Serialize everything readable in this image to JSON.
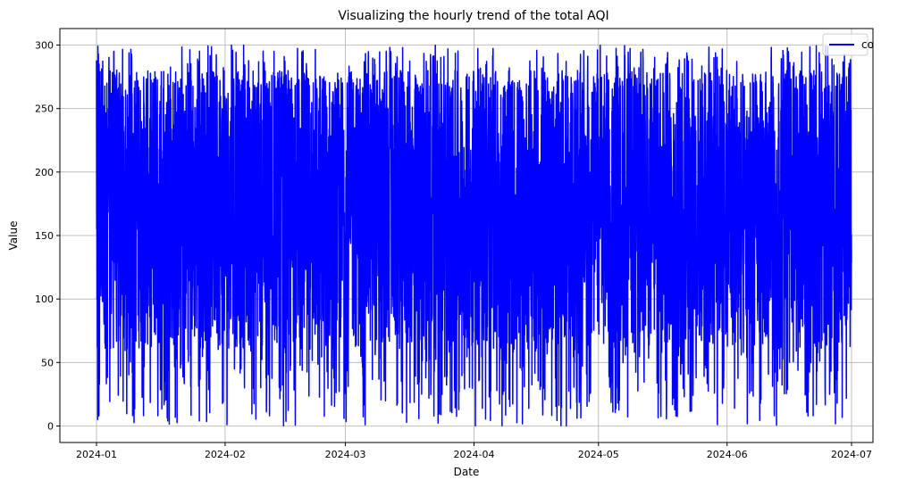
{
  "chart_data": {
    "type": "line",
    "title": "Visualizing the hourly trend of the total AQI",
    "xlabel": "Date",
    "ylabel": "Value",
    "x_range": [
      "2024-01-01",
      "2024-07-01"
    ],
    "ylim": [
      -13,
      313
    ],
    "x_ticks": [
      "2024-01",
      "2024-02",
      "2024-03",
      "2024-04",
      "2024-05",
      "2024-06",
      "2024-07"
    ],
    "y_ticks": [
      0,
      50,
      100,
      150,
      200,
      250,
      300
    ],
    "grid": true,
    "legend_position": "top-right",
    "series": [
      {
        "name": "co",
        "color": "#0000ff",
        "frequency": "hourly",
        "start": "2024-01-01 00:00",
        "end": "2024-07-01 00:00",
        "min": 0,
        "max": 300,
        "sample_values": [
          288,
          155,
          262,
          100,
          232,
          62,
          181,
          5,
          299,
          43,
          17,
          293,
          60,
          150,
          8,
          285,
          210,
          33,
          120,
          270
        ]
      }
    ]
  }
}
